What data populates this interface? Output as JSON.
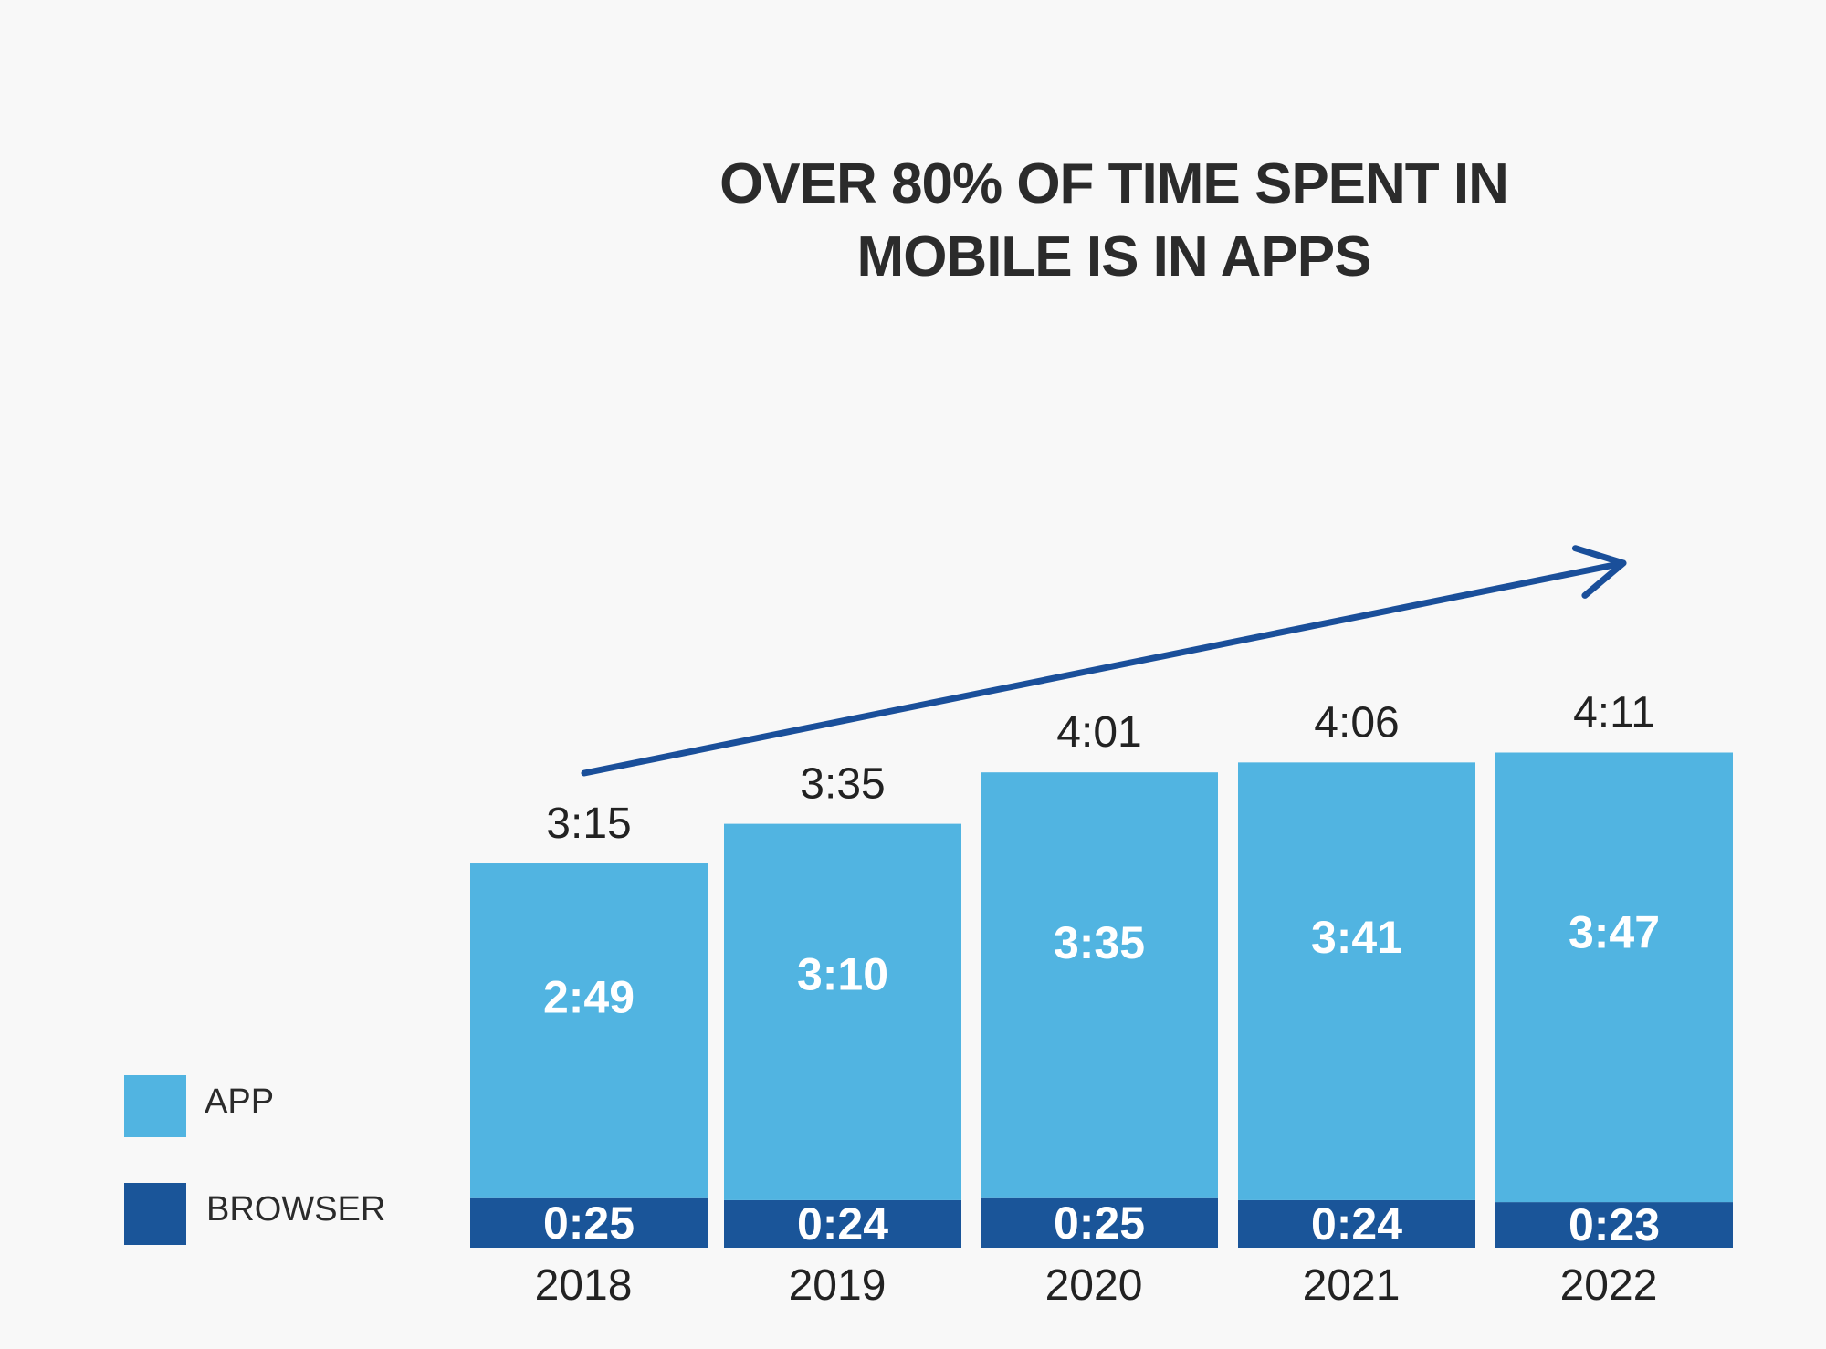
{
  "chart_data": {
    "type": "bar",
    "stacked": true,
    "title_lines": [
      "OVER 80% OF TIME SPENT IN",
      "MOBILE IS IN APPS"
    ],
    "categories": [
      "2018",
      "2019",
      "2020",
      "2021",
      "2022"
    ],
    "series": [
      {
        "name": "BROWSER",
        "color": "#1a5599",
        "values": [
          25,
          24,
          25,
          24,
          23
        ],
        "labels": [
          "0:25",
          "0:24",
          "0:25",
          "0:24",
          "0:23"
        ]
      },
      {
        "name": "APP",
        "color": "#51b4e1",
        "values": [
          169,
          190,
          215,
          221,
          227
        ],
        "labels": [
          "2:49",
          "3:10",
          "3:35",
          "3:41",
          "3:47"
        ]
      }
    ],
    "totals": [
      195,
      215,
      241,
      246,
      251
    ],
    "total_labels": [
      "3:15",
      "3:35",
      "4:01",
      "4:06",
      "4:11"
    ],
    "legend": [
      {
        "name": "APP",
        "color": "#51b4e1"
      },
      {
        "name": "BROWSER",
        "color": "#1a5599"
      }
    ],
    "legend_position": "left-bottom",
    "trend_arrow": {
      "from_category": "2018",
      "to_category": "2022",
      "color": "#1a4f9a"
    },
    "ylim": [
      0,
      260
    ],
    "grid": false
  }
}
